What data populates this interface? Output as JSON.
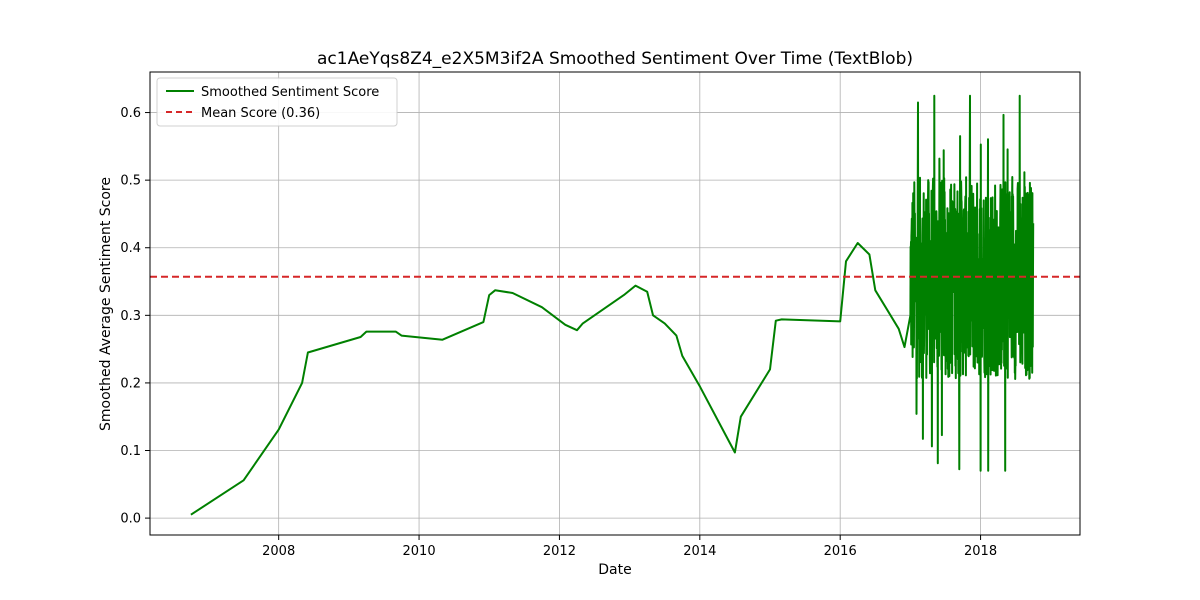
{
  "chart_data": {
    "type": "line",
    "title": "ac1AeYqs8Z4_e2X5M3if2A Smoothed Sentiment Over Time (TextBlob)",
    "xlabel": "Date",
    "ylabel": "Smoothed Average Sentiment Score",
    "xlim": [
      "2006-03-01",
      "2019-06-01"
    ],
    "ylim": [
      -0.025,
      0.66
    ],
    "x_ticks": [
      "2008",
      "2010",
      "2012",
      "2014",
      "2016",
      "2018"
    ],
    "y_ticks": [
      "0.0",
      "0.1",
      "0.2",
      "0.3",
      "0.4",
      "0.5",
      "0.6"
    ],
    "grid": true,
    "legend_position": "top-left",
    "series": [
      {
        "name": "Smoothed Sentiment Score",
        "color": "#008000",
        "style": "solid",
        "points": [
          [
            "2006-10-01",
            0.005
          ],
          [
            "2007-07-01",
            0.056
          ],
          [
            "2008-01-01",
            0.131
          ],
          [
            "2008-05-01",
            0.2
          ],
          [
            "2008-06-01",
            0.245
          ],
          [
            "2009-03-01",
            0.268
          ],
          [
            "2009-04-01",
            0.276
          ],
          [
            "2009-09-01",
            0.276
          ],
          [
            "2009-10-01",
            0.27
          ],
          [
            "2010-05-01",
            0.264
          ],
          [
            "2010-12-01",
            0.29
          ],
          [
            "2011-01-01",
            0.33
          ],
          [
            "2011-02-01",
            0.337
          ],
          [
            "2011-05-01",
            0.333
          ],
          [
            "2011-10-01",
            0.312
          ],
          [
            "2012-02-01",
            0.286
          ],
          [
            "2012-04-01",
            0.278
          ],
          [
            "2012-05-01",
            0.288
          ],
          [
            "2012-12-01",
            0.33
          ],
          [
            "2013-02-01",
            0.344
          ],
          [
            "2013-04-01",
            0.335
          ],
          [
            "2013-05-01",
            0.3
          ],
          [
            "2013-07-01",
            0.288
          ],
          [
            "2013-09-01",
            0.27
          ],
          [
            "2013-10-01",
            0.24
          ],
          [
            "2014-01-01",
            0.195
          ],
          [
            "2014-07-01",
            0.097
          ],
          [
            "2014-08-01",
            0.15
          ],
          [
            "2015-01-01",
            0.22
          ],
          [
            "2015-02-01",
            0.292
          ],
          [
            "2015-03-01",
            0.294
          ],
          [
            "2016-01-01",
            0.291
          ],
          [
            "2016-02-01",
            0.38
          ],
          [
            "2016-04-01",
            0.407
          ],
          [
            "2016-06-01",
            0.39
          ],
          [
            "2016-07-01",
            0.337
          ],
          [
            "2016-11-01",
            0.28
          ],
          [
            "2016-12-01",
            0.253
          ],
          [
            "2017-01-01",
            0.3
          ]
        ]
      },
      {
        "name": "Mean Score (0.36)",
        "color": "#d62728",
        "style": "dashed",
        "value": 0.357
      }
    ]
  }
}
